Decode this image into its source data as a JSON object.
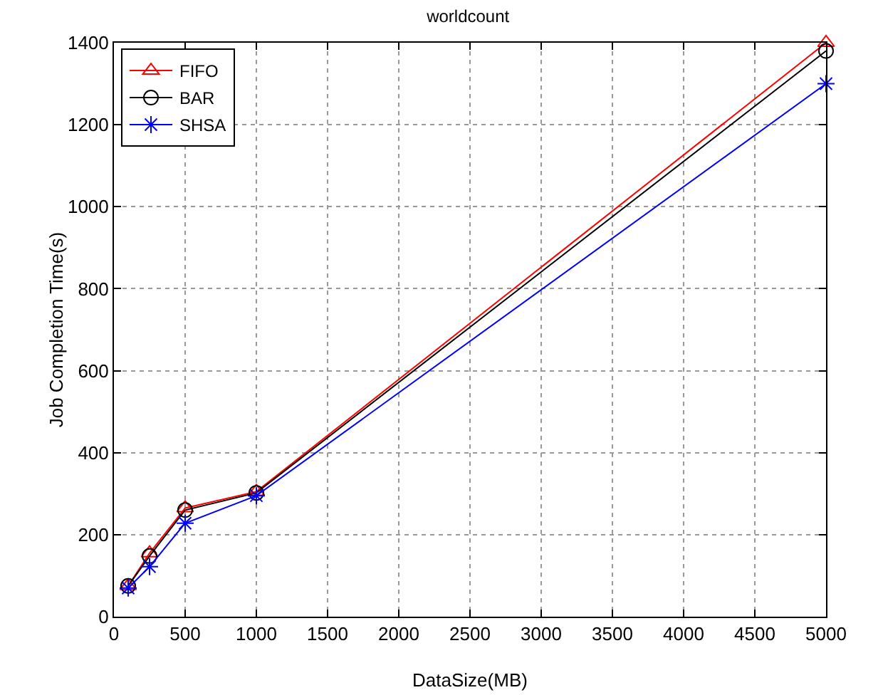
{
  "chart_data": {
    "type": "line",
    "title": "worldcount",
    "xlabel": "DataSize(MB)",
    "ylabel": "Job Completion Time(s)",
    "x": [
      100,
      250,
      500,
      1000,
      5000
    ],
    "series": [
      {
        "name": "FIFO",
        "color": "#ff0000",
        "marker": "triangle",
        "values": [
          75,
          155,
          265,
          305,
          1400
        ]
      },
      {
        "name": "BAR",
        "color": "#000000",
        "marker": "circle",
        "values": [
          75,
          148,
          260,
          302,
          1380
        ]
      },
      {
        "name": "SHSA",
        "color": "#0000ff",
        "marker": "cross",
        "values": [
          70,
          122,
          228,
          295,
          1300
        ]
      }
    ],
    "xlim": [
      0,
      5000
    ],
    "xticks": [
      0,
      500,
      1000,
      1500,
      2000,
      2500,
      3000,
      3500,
      4000,
      4500,
      5000
    ],
    "ylim": [
      0,
      1400
    ],
    "yticks": [
      0,
      200,
      400,
      600,
      800,
      1000,
      1200,
      1400
    ],
    "grid": true,
    "legend": "top left",
    "line_style": "solid"
  }
}
